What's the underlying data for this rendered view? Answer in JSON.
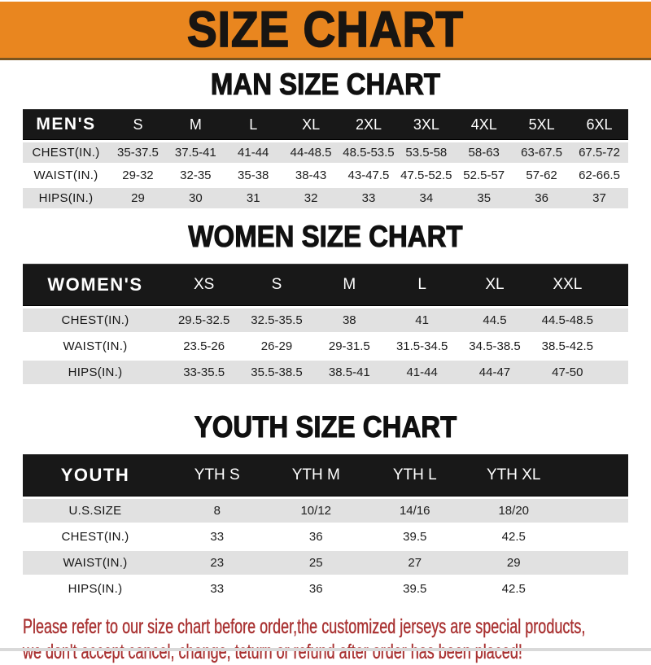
{
  "banner": {
    "title": "SIZE CHART"
  },
  "sections": [
    {
      "title": "MAN SIZE CHART",
      "header_label": "MEN'S",
      "columns": [
        "S",
        "M",
        "L",
        "XL",
        "2XL",
        "3XL",
        "4XL",
        "5XL",
        "6XL"
      ],
      "rows": [
        {
          "label": "CHEST(IN.)",
          "values": [
            "35-37.5",
            "37.5-41",
            "41-44",
            "44-48.5",
            "48.5-53.5",
            "53.5-58",
            "58-63",
            "63-67.5",
            "67.5-72"
          ]
        },
        {
          "label": "WAIST(IN.)",
          "values": [
            "29-32",
            "32-35",
            "35-38",
            "38-43",
            "43-47.5",
            "47.5-52.5",
            "52.5-57",
            "57-62",
            "62-66.5"
          ]
        },
        {
          "label": "HIPS(IN.)",
          "values": [
            "29",
            "30",
            "31",
            "32",
            "33",
            "34",
            "35",
            "36",
            "37"
          ]
        }
      ]
    },
    {
      "title": "WOMEN SIZE CHART",
      "header_label": "WOMEN'S",
      "columns": [
        "XS",
        "S",
        "M",
        "L",
        "XL",
        "XXL"
      ],
      "rows": [
        {
          "label": "CHEST(IN.)",
          "values": [
            "29.5-32.5",
            "32.5-35.5",
            "38",
            "41",
            "44.5",
            "44.5-48.5"
          ]
        },
        {
          "label": "WAIST(IN.)",
          "values": [
            "23.5-26",
            "26-29",
            "29-31.5",
            "31.5-34.5",
            "34.5-38.5",
            "38.5-42.5"
          ]
        },
        {
          "label": "HIPS(IN.)",
          "values": [
            "33-35.5",
            "35.5-38.5",
            "38.5-41",
            "41-44",
            "44-47",
            "47-50"
          ]
        }
      ]
    },
    {
      "title": "YOUTH SIZE CHART",
      "header_label": "YOUTH",
      "columns": [
        "YTH S",
        "YTH M",
        "YTH L",
        "YTH XL"
      ],
      "rows": [
        {
          "label": "U.S.SIZE",
          "values": [
            "8",
            "10/12",
            "14/16",
            "18/20"
          ]
        },
        {
          "label": "CHEST(IN.)",
          "values": [
            "33",
            "36",
            "39.5",
            "42.5"
          ]
        },
        {
          "label": "WAIST(IN.)",
          "values": [
            "23",
            "25",
            "27",
            "29"
          ]
        },
        {
          "label": "HIPS(IN.)",
          "values": [
            "33",
            "36",
            "39.5",
            "42.5"
          ]
        }
      ]
    }
  ],
  "footer": {
    "line1": "Please refer to our size chart before order,the customized jerseys are special products,",
    "line2": "we don't accept cancel, change, teturn or refund after order has been placed!"
  },
  "colors": {
    "banner_bg": "#E9861F",
    "band_bg": "#181818",
    "row_alt": "#E1E1E1",
    "footer_red": "#A93232"
  }
}
